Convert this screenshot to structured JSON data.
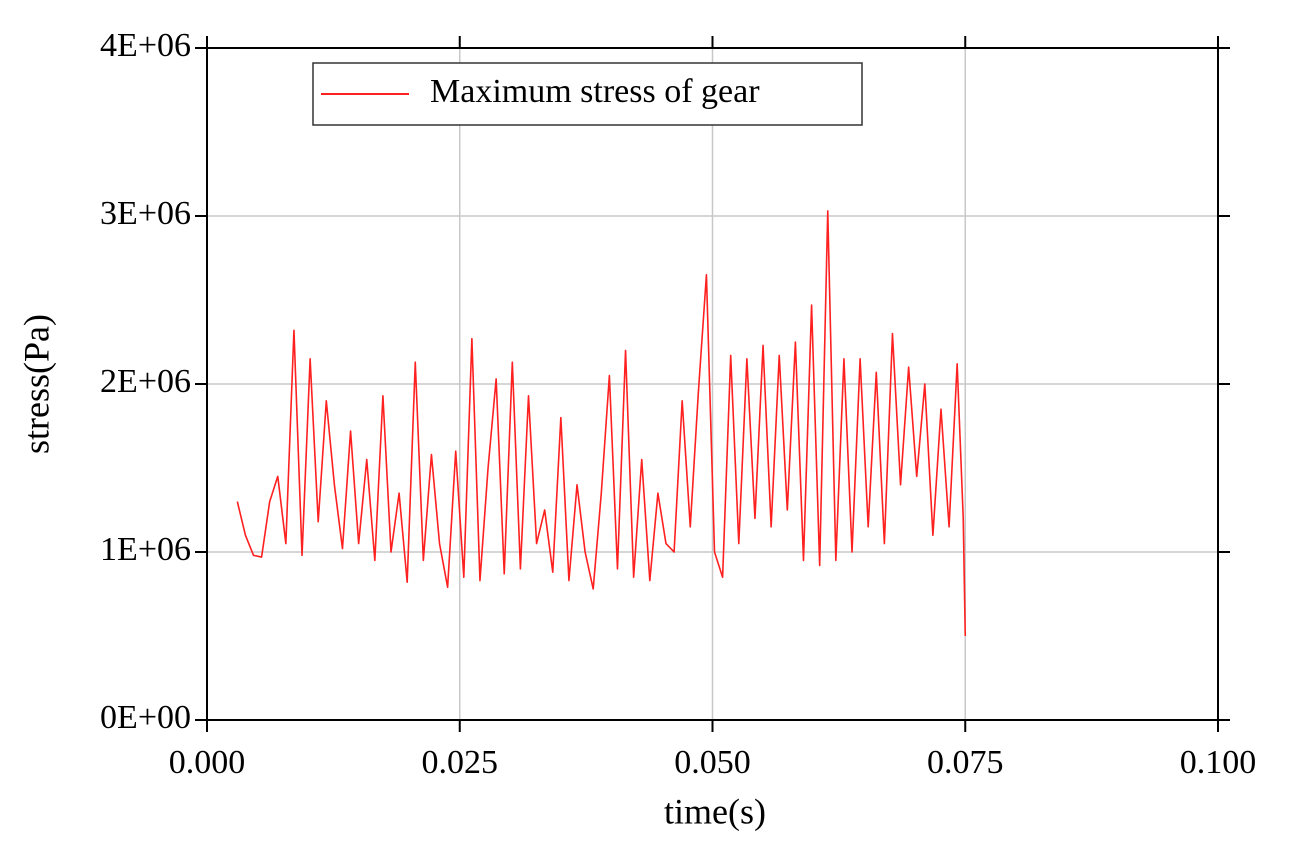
{
  "chart_data": {
    "type": "line",
    "xlabel": "time(s)",
    "ylabel": "stress(Pa)",
    "xlim": [
      0,
      0.1
    ],
    "ylim": [
      0,
      4000000
    ],
    "xticks": [
      {
        "value": 0,
        "label": "0.000"
      },
      0.025,
      {
        "value": 0.05,
        "label": "0.050"
      },
      0.075,
      {
        "value": 0.1,
        "label": "0.100"
      }
    ],
    "yticks": [
      {
        "value": 0,
        "label": "0E+00"
      },
      {
        "value": 1000000,
        "label": "1E+06"
      },
      {
        "value": 2000000,
        "label": "2E+06"
      },
      {
        "value": 3000000,
        "label": "3E+06"
      },
      {
        "value": 4000000,
        "label": "4E+06"
      }
    ],
    "grid": true,
    "legend": "upper left",
    "x": [
      0.003,
      0.0038,
      0.0046,
      0.0054,
      0.0062,
      0.007,
      0.0078,
      0.0086,
      0.0094,
      0.0102,
      0.011,
      0.0118,
      0.0126,
      0.0134,
      0.0142,
      0.015,
      0.0158,
      0.0166,
      0.0174,
      0.0182,
      0.019,
      0.0198,
      0.0206,
      0.0214,
      0.0222,
      0.023,
      0.0238,
      0.0246,
      0.0254,
      0.0262,
      0.027,
      0.0278,
      0.0286,
      0.0294,
      0.0302,
      0.031,
      0.0318,
      0.0326,
      0.0334,
      0.0342,
      0.035,
      0.0358,
      0.0366,
      0.0374,
      0.0382,
      0.039,
      0.0398,
      0.0406,
      0.0414,
      0.0422,
      0.043,
      0.0438,
      0.0446,
      0.0454,
      0.0462,
      0.047,
      0.0478,
      0.0486,
      0.0494,
      0.0502,
      0.051,
      0.0518,
      0.0526,
      0.0534,
      0.0542,
      0.055,
      0.0558,
      0.0566,
      0.0574,
      0.0582,
      0.059,
      0.0598,
      0.0606,
      0.0614,
      0.0622,
      0.063,
      0.0638,
      0.0646,
      0.0654,
      0.0662,
      0.067,
      0.0678,
      0.0686,
      0.0694,
      0.0702,
      0.071,
      0.0718,
      0.0726,
      0.0734,
      0.0742,
      0.0748,
      0.075
    ],
    "series": [
      {
        "name": "Maximum stress of gear",
        "color": "#ff2020",
        "values": [
          1300000,
          1100000,
          980000,
          970000,
          1300000,
          1450000,
          1050000,
          2320000,
          980000,
          2150000,
          1180000,
          1900000,
          1400000,
          1020000,
          1720000,
          1050000,
          1550000,
          950000,
          1930000,
          1000000,
          1350000,
          820000,
          2130000,
          950000,
          1580000,
          1050000,
          790000,
          1600000,
          850000,
          2270000,
          830000,
          1500000,
          2030000,
          870000,
          2130000,
          900000,
          1930000,
          1050000,
          1250000,
          880000,
          1800000,
          830000,
          1400000,
          1000000,
          780000,
          1350000,
          2050000,
          900000,
          2200000,
          850000,
          1550000,
          830000,
          1350000,
          1050000,
          1000000,
          1900000,
          1150000,
          1950000,
          2650000,
          1000000,
          850000,
          2170000,
          1050000,
          2150000,
          1200000,
          2230000,
          1150000,
          2170000,
          1250000,
          2250000,
          950000,
          2470000,
          920000,
          3030000,
          950000,
          2150000,
          1000000,
          2150000,
          1150000,
          2070000,
          1050000,
          2300000,
          1400000,
          2100000,
          1450000,
          2000000,
          1100000,
          1850000,
          1150000,
          2120000,
          1200000,
          500000
        ]
      }
    ]
  }
}
